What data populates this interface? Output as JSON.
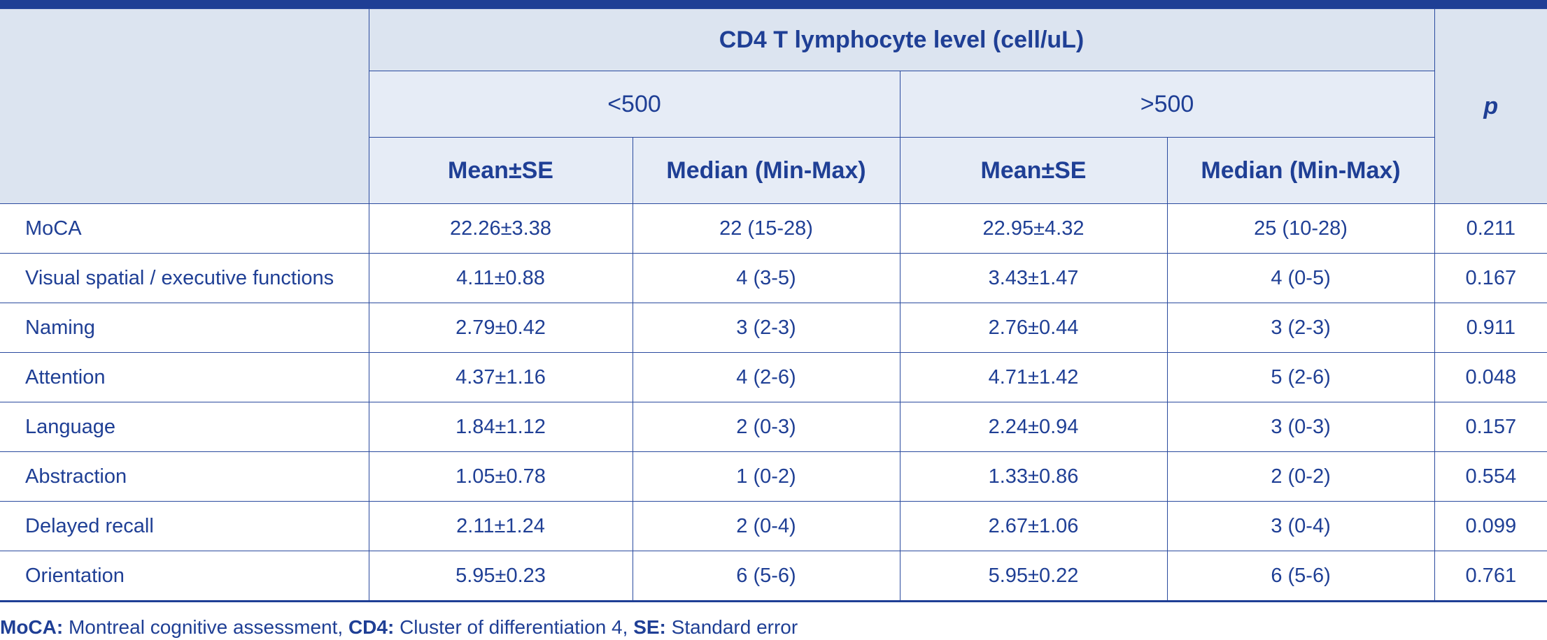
{
  "table": {
    "group_header": "CD4 T lymphocyte level (cell/uL)",
    "subgroups": [
      "<500",
      ">500"
    ],
    "stat_headers": [
      "Mean±SE",
      "Median (Min-Max)",
      "Mean±SE",
      "Median (Min-Max)"
    ],
    "p_header": "p",
    "rows": [
      {
        "label": "MoCA",
        "mean1": "22.26±3.38",
        "median1": "22 (15-28)",
        "mean2": "22.95±4.32",
        "median2": "25 (10-28)",
        "p": "0.211"
      },
      {
        "label": "Visual spatial / executive functions",
        "mean1": "4.11±0.88",
        "median1": "4 (3-5)",
        "mean2": "3.43±1.47",
        "median2": "4 (0-5)",
        "p": "0.167"
      },
      {
        "label": "Naming",
        "mean1": "2.79±0.42",
        "median1": "3 (2-3)",
        "mean2": "2.76±0.44",
        "median2": "3 (2-3)",
        "p": "0.911"
      },
      {
        "label": "Attention",
        "mean1": "4.37±1.16",
        "median1": "4 (2-6)",
        "mean2": "4.71±1.42",
        "median2": "5 (2-6)",
        "p": "0.048"
      },
      {
        "label": "Language",
        "mean1": "1.84±1.12",
        "median1": "2 (0-3)",
        "mean2": "2.24±0.94",
        "median2": "3 (0-3)",
        "p": "0.157"
      },
      {
        "label": "Abstraction",
        "mean1": "1.05±0.78",
        "median1": "1 (0-2)",
        "mean2": "1.33±0.86",
        "median2": "2 (0-2)",
        "p": "0.554"
      },
      {
        "label": "Delayed recall",
        "mean1": "2.11±1.24",
        "median1": "2 (0-4)",
        "mean2": "2.67±1.06",
        "median2": "3 (0-4)",
        "p": "0.099"
      },
      {
        "label": "Orientation",
        "mean1": "5.95±0.23",
        "median1": "6 (5-6)",
        "mean2": "5.95±0.22",
        "median2": "6 (5-6)",
        "p": "0.761"
      }
    ]
  },
  "footnote": {
    "items": [
      {
        "abbr": "MoCA:",
        "text": " Montreal cognitive assessment, "
      },
      {
        "abbr": "CD4:",
        "text": " Cluster of differentiation 4, "
      },
      {
        "abbr": "SE:",
        "text": " Standard error"
      }
    ]
  },
  "colors": {
    "primary": "#1f3f95",
    "header_bg": "#dce4f0",
    "subheader_bg": "#e6ecf6"
  }
}
